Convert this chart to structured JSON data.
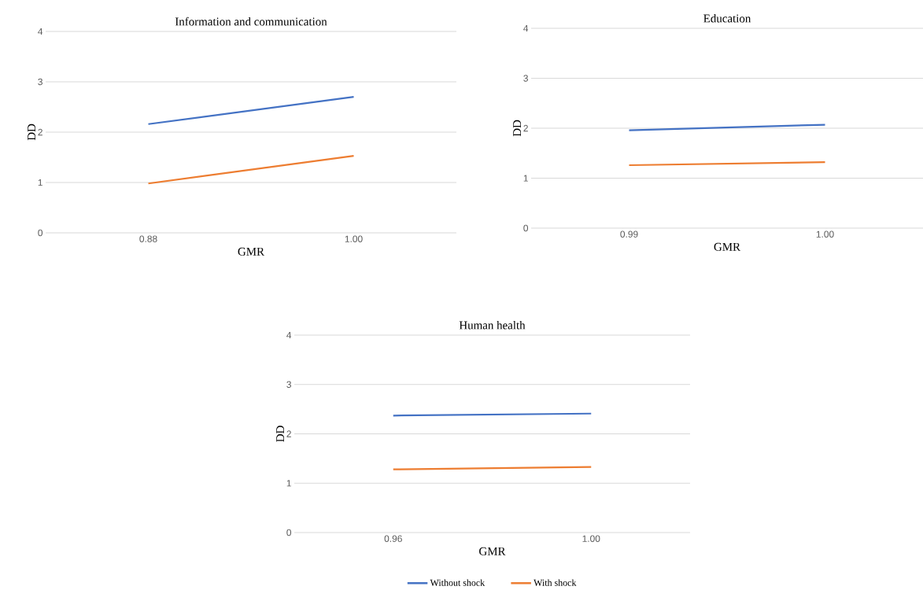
{
  "chart_data": [
    {
      "type": "line",
      "title": "Information and communication",
      "xlabel": "GMR",
      "ylabel": "DD",
      "categories": [
        "0.88",
        "1.00"
      ],
      "ylim": [
        0,
        4
      ],
      "yticks": [
        0,
        1,
        2,
        3,
        4
      ],
      "grid": "y",
      "legend": false,
      "marker": "none",
      "series": [
        {
          "color": "#4472c4",
          "values": [
            2.16,
            2.7
          ]
        },
        {
          "color": "#ed7d31",
          "values": [
            0.98,
            1.53
          ]
        }
      ]
    },
    {
      "type": "line",
      "title": "Education",
      "xlabel": "GMR",
      "ylabel": "DD",
      "categories": [
        "0.99",
        "1.00"
      ],
      "ylim": [
        0,
        4
      ],
      "yticks": [
        0,
        1,
        2,
        3,
        4
      ],
      "grid": "y",
      "legend": false,
      "marker": "none",
      "series": [
        {
          "color": "#4472c4",
          "values": [
            1.96,
            2.07
          ]
        },
        {
          "color": "#ed7d31",
          "values": [
            1.26,
            1.32
          ]
        }
      ]
    },
    {
      "type": "line",
      "title": "Human health",
      "xlabel": "GMR",
      "ylabel": "DD",
      "categories": [
        "0.96",
        "1.00"
      ],
      "ylim": [
        0,
        4
      ],
      "yticks": [
        0,
        1,
        2,
        3,
        4
      ],
      "grid": "y",
      "legend": "bottom",
      "marker": "none",
      "series": [
        {
          "name": "Without shock",
          "color": "#4472c4",
          "values": [
            2.37,
            2.41
          ]
        },
        {
          "name": "With shock",
          "color": "#ed7d31",
          "values": [
            1.28,
            1.33
          ]
        }
      ]
    }
  ]
}
